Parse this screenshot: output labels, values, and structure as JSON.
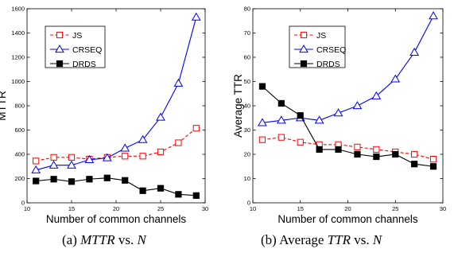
{
  "chart_data": [
    {
      "type": "line",
      "xlabel": "Number of common channels",
      "ylabel": "MTTR",
      "xlim": [
        10,
        30
      ],
      "ylim": [
        0,
        1600
      ],
      "xticks": [
        10,
        15,
        20,
        25,
        30
      ],
      "yticks": [
        0,
        200,
        400,
        600,
        800,
        1000,
        1200,
        1400,
        1600
      ],
      "grid": false,
      "legend_position": "top-left",
      "series": [
        {
          "name": "JS",
          "color": "#ff0000",
          "marker": "square-open",
          "dash": "dashed",
          "x": [
            11,
            13,
            15,
            17,
            19,
            21,
            23,
            25,
            27,
            29
          ],
          "values": [
            345,
            375,
            375,
            360,
            375,
            385,
            385,
            420,
            495,
            615
          ]
        },
        {
          "name": "CRSEQ",
          "color": "#0000ff",
          "marker": "triangle-open",
          "dash": "solid",
          "x": [
            11,
            13,
            15,
            17,
            19,
            21,
            23,
            25,
            27,
            29
          ],
          "values": [
            270,
            310,
            310,
            355,
            370,
            450,
            520,
            705,
            985,
            1530
          ]
        },
        {
          "name": "DRDS",
          "color": "#000000",
          "marker": "square-filled",
          "dash": "solid",
          "x": [
            11,
            13,
            15,
            17,
            19,
            21,
            23,
            25,
            27,
            29
          ],
          "values": [
            180,
            195,
            175,
            195,
            205,
            185,
            100,
            120,
            70,
            60
          ]
        }
      ]
    },
    {
      "type": "line",
      "xlabel": "Number of common channels",
      "ylabel": "Average TTR",
      "xlim": [
        10,
        30
      ],
      "ylim": [
        0,
        80
      ],
      "xticks": [
        10,
        15,
        20,
        25,
        30
      ],
      "yticks": [
        0,
        10,
        20,
        30,
        40,
        50,
        60,
        70,
        80
      ],
      "grid": false,
      "legend_position": "top-left",
      "series": [
        {
          "name": "JS",
          "color": "#ff0000",
          "marker": "square-open",
          "dash": "dashed",
          "x": [
            11,
            13,
            15,
            17,
            19,
            21,
            23,
            25,
            27,
            29
          ],
          "values": [
            26,
            27,
            25,
            24,
            24,
            23,
            22,
            21,
            20,
            18
          ]
        },
        {
          "name": "CRSEQ",
          "color": "#0000ff",
          "marker": "triangle-open",
          "dash": "solid",
          "x": [
            11,
            13,
            15,
            17,
            19,
            21,
            23,
            25,
            27,
            29
          ],
          "values": [
            33,
            34,
            35,
            34,
            37,
            40,
            44,
            51,
            62,
            77
          ]
        },
        {
          "name": "DRDS",
          "color": "#000000",
          "marker": "square-filled",
          "dash": "solid",
          "x": [
            11,
            13,
            15,
            17,
            19,
            21,
            23,
            25,
            27,
            29
          ],
          "values": [
            48,
            41,
            36,
            22,
            22,
            20,
            19,
            20,
            16,
            15
          ]
        }
      ]
    }
  ],
  "captions": {
    "a": {
      "prefix": "(a) ",
      "math1": "MTTR",
      "mid": " vs. ",
      "math2": "N"
    },
    "b": {
      "prefix": "(b) Average ",
      "math1": "TTR",
      "mid": " vs. ",
      "math2": "N"
    }
  }
}
